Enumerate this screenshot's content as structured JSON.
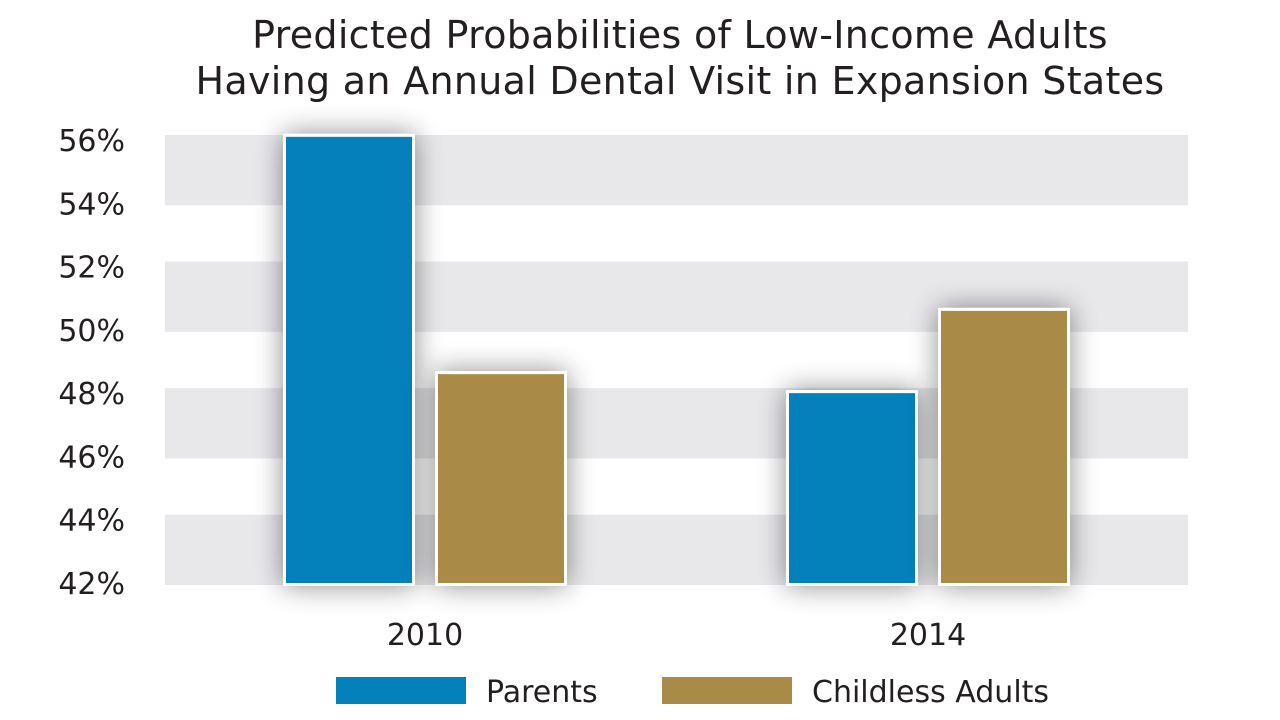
{
  "chart_data": {
    "type": "bar",
    "title_lines": [
      "Predicted Probabilities of Low-Income Adults",
      "Having an Annual Dental Visit in Expansion States"
    ],
    "categories": [
      "2010",
      "2014"
    ],
    "series": [
      {
        "name": "Parents",
        "color": "#0480bb",
        "values": [
          56.1,
          48.0
        ]
      },
      {
        "name": "Childless Adults",
        "color": "#a98a46",
        "values": [
          48.6,
          50.6
        ]
      }
    ],
    "xlabel": "",
    "ylabel": "",
    "ylim": [
      42,
      56
    ],
    "yticks": [
      56,
      54,
      52,
      50,
      48,
      46,
      44,
      42
    ],
    "ytick_labels": [
      "56%",
      "54%",
      "52%",
      "50%",
      "48%",
      "46%",
      "44%",
      "42%"
    ],
    "grid": "alternating horizontal bands",
    "band_color": "#e8e8ea",
    "legend_position": "bottom-center"
  }
}
